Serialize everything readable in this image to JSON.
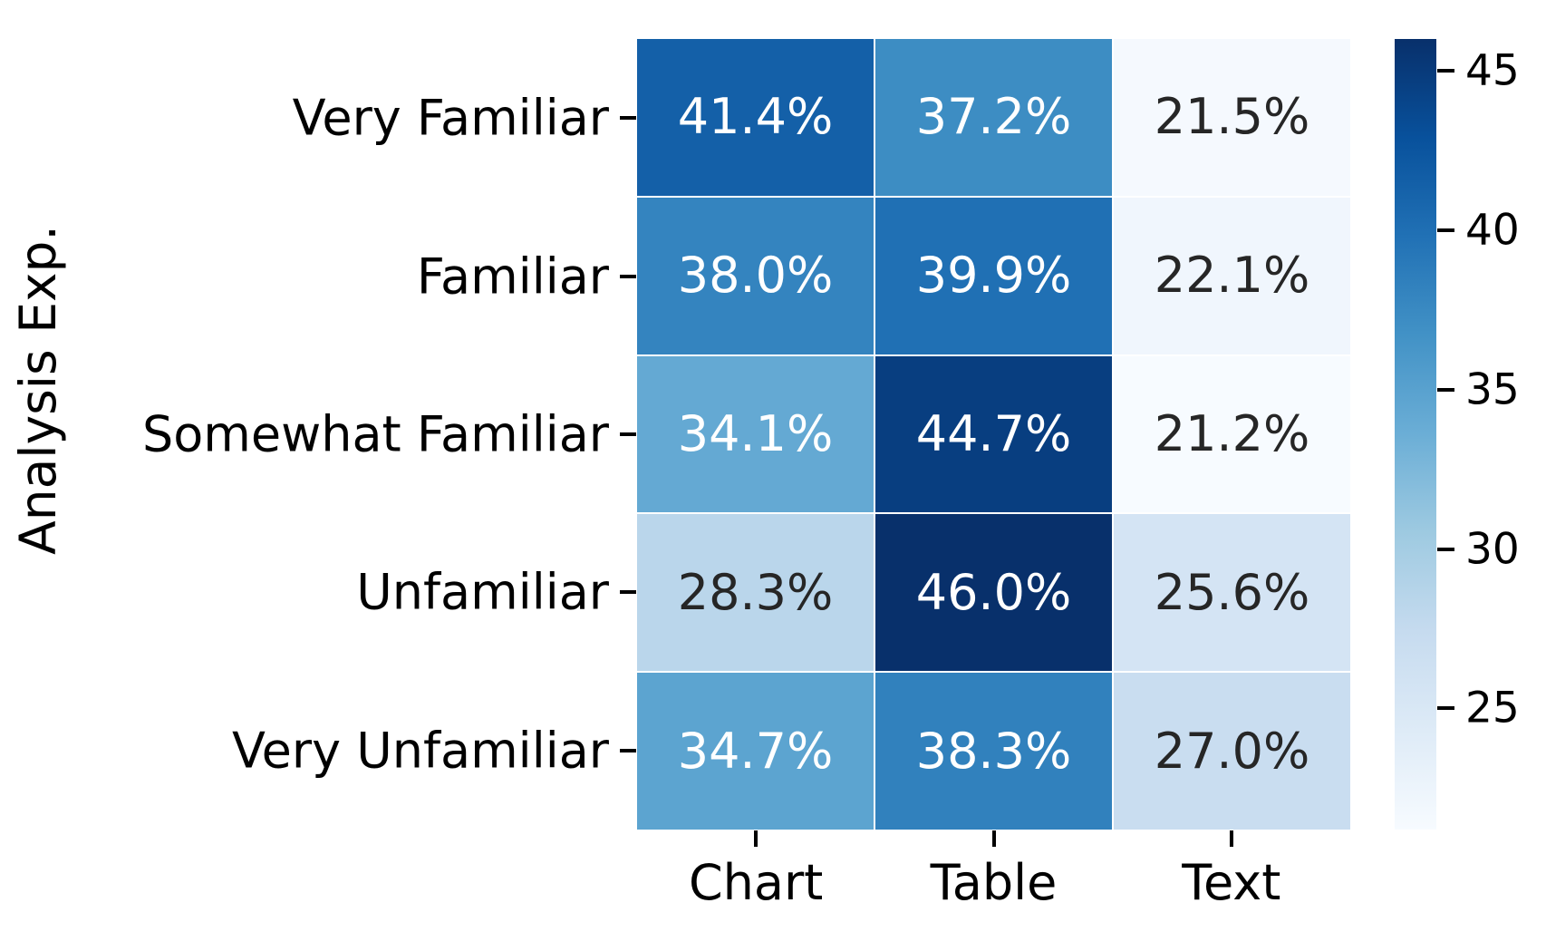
{
  "figure": {
    "background": "#ffffff"
  },
  "chart_data": {
    "type": "heatmap",
    "title": "",
    "xlabel": "",
    "ylabel": "Analysis Exp.",
    "rows": [
      "Very Familiar",
      "Familiar",
      "Somewhat Familiar",
      "Unfamiliar",
      "Very Unfamiliar"
    ],
    "columns": [
      "Chart",
      "Table",
      "Text"
    ],
    "values": [
      [
        41.4,
        37.2,
        21.5
      ],
      [
        38.0,
        39.9,
        22.1
      ],
      [
        34.1,
        44.7,
        21.2
      ],
      [
        28.3,
        46.0,
        25.6
      ],
      [
        34.7,
        38.3,
        27.0
      ]
    ],
    "cell_labels": [
      [
        "41.4%",
        "37.2%",
        "21.5%"
      ],
      [
        "38.0%",
        "39.9%",
        "22.1%"
      ],
      [
        "34.1%",
        "44.7%",
        "21.2%"
      ],
      [
        "28.3%",
        "46.0%",
        "25.6%"
      ],
      [
        "34.7%",
        "38.3%",
        "27.0%"
      ]
    ],
    "colormap": "Blues",
    "vmin": 21.2,
    "vmax": 46.0,
    "grid_gap_color": "#ffffff",
    "annotation_color_light": "#ffffff",
    "annotation_color_dark": "#262626",
    "tick_color": "#000000",
    "colorbar": {
      "position": "right",
      "tick_labels": [
        "45",
        "40",
        "35",
        "30",
        "25"
      ],
      "tick_values": [
        45,
        40,
        35,
        30,
        25
      ]
    }
  }
}
